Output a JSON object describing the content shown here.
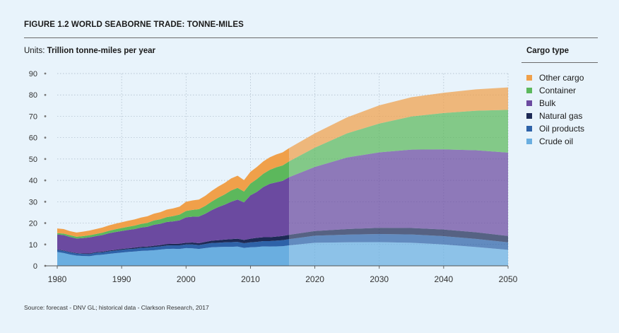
{
  "figure": {
    "title": "FIGURE 1.2 WORLD SEABORNE TRADE: TONNE-MILES",
    "units_prefix": "Units:",
    "units_value": "Trillion tonne-miles per year",
    "source": "Source: forecast - DNV GL; historical data - Clarkson Research, 2017"
  },
  "legend": {
    "title": "Cargo type",
    "items": [
      {
        "label": "Other cargo",
        "color": "#f0a04a"
      },
      {
        "label": "Container",
        "color": "#5cb85c"
      },
      {
        "label": "Bulk",
        "color": "#6b4aa0"
      },
      {
        "label": "Natural gas",
        "color": "#1d2a55"
      },
      {
        "label": "Oil products",
        "color": "#2e62a8"
      },
      {
        "label": "Crude oil",
        "color": "#6aaee0"
      }
    ]
  },
  "chart_data": {
    "type": "area",
    "stacked": true,
    "title": "FIGURE 1.2 WORLD SEABORNE TRADE: TONNE-MILES",
    "ylabel": "Trillion tonne-miles per year",
    "xlabel": "",
    "xlim": [
      1980,
      2050
    ],
    "ylim": [
      0,
      90
    ],
    "forecast_start": 2016,
    "x_ticks": [
      1980,
      1990,
      2000,
      2010,
      2020,
      2030,
      2040,
      2050
    ],
    "y_ticks": [
      0,
      10,
      20,
      30,
      40,
      50,
      60,
      70,
      80,
      90
    ],
    "x": [
      1980,
      1981,
      1982,
      1983,
      1984,
      1985,
      1986,
      1987,
      1988,
      1989,
      1990,
      1991,
      1992,
      1993,
      1994,
      1995,
      1996,
      1997,
      1998,
      1999,
      2000,
      2001,
      2002,
      2003,
      2004,
      2005,
      2006,
      2007,
      2008,
      2009,
      2010,
      2011,
      2012,
      2013,
      2014,
      2015,
      2016,
      2020,
      2025,
      2030,
      2035,
      2040,
      2045,
      2050
    ],
    "series": [
      {
        "name": "Crude oil",
        "color": "#6aaee0",
        "values": [
          6.5,
          6.0,
          5.3,
          4.8,
          4.6,
          4.5,
          5.0,
          5.2,
          5.6,
          5.9,
          6.2,
          6.5,
          6.7,
          7.0,
          7.1,
          7.3,
          7.6,
          7.9,
          8.0,
          7.9,
          8.3,
          8.2,
          7.9,
          8.3,
          8.7,
          8.8,
          8.9,
          8.9,
          9.0,
          8.4,
          8.7,
          8.8,
          9.1,
          9.0,
          9.1,
          9.2,
          9.6,
          10.8,
          11.0,
          11.1,
          10.8,
          10.0,
          8.8,
          7.5
        ]
      },
      {
        "name": "Oil products",
        "color": "#2e62a8",
        "values": [
          1.0,
          1.0,
          1.0,
          1.0,
          1.0,
          1.0,
          1.1,
          1.1,
          1.2,
          1.2,
          1.3,
          1.3,
          1.3,
          1.4,
          1.4,
          1.5,
          1.5,
          1.6,
          1.6,
          1.7,
          1.7,
          1.8,
          1.8,
          1.9,
          2.0,
          2.0,
          2.1,
          2.2,
          2.2,
          2.2,
          2.3,
          2.4,
          2.5,
          2.6,
          2.7,
          2.8,
          2.9,
          3.3,
          3.6,
          3.8,
          3.9,
          3.9,
          3.8,
          3.5
        ]
      },
      {
        "name": "Natural gas",
        "color": "#1d2a55",
        "values": [
          0.2,
          0.2,
          0.2,
          0.2,
          0.2,
          0.3,
          0.3,
          0.3,
          0.3,
          0.4,
          0.4,
          0.4,
          0.5,
          0.5,
          0.5,
          0.6,
          0.6,
          0.7,
          0.7,
          0.8,
          0.8,
          0.9,
          0.9,
          1.0,
          1.1,
          1.2,
          1.3,
          1.4,
          1.5,
          1.5,
          1.7,
          1.9,
          1.8,
          1.8,
          1.9,
          2.0,
          2.0,
          2.2,
          2.6,
          2.9,
          3.0,
          3.1,
          3.1,
          3.0
        ]
      },
      {
        "name": "Bulk",
        "color": "#6b4aa0",
        "values": [
          7.0,
          7.2,
          7.0,
          6.8,
          7.2,
          7.5,
          7.5,
          7.8,
          8.1,
          8.3,
          8.4,
          8.6,
          8.7,
          9.0,
          9.3,
          9.8,
          10.0,
          10.3,
          10.5,
          10.9,
          11.9,
          12.1,
          12.5,
          13.2,
          14.3,
          15.5,
          16.3,
          17.5,
          18.3,
          17.6,
          20.3,
          21.5,
          23.5,
          25.0,
          25.4,
          25.8,
          27.0,
          30.0,
          33.5,
          35.3,
          36.7,
          37.5,
          38.4,
          39.0
        ]
      },
      {
        "name": "Container",
        "color": "#5cb85c",
        "values": [
          0.6,
          0.7,
          0.8,
          0.8,
          0.9,
          1.0,
          1.0,
          1.1,
          1.2,
          1.3,
          1.4,
          1.5,
          1.6,
          1.7,
          1.8,
          2.0,
          2.1,
          2.3,
          2.5,
          2.7,
          3.0,
          3.2,
          3.4,
          3.7,
          4.0,
          4.4,
          4.8,
          5.3,
          5.5,
          5.1,
          5.5,
          6.0,
          6.2,
          6.5,
          7.0,
          7.2,
          7.4,
          9.0,
          11.3,
          13.5,
          15.5,
          17.0,
          18.5,
          20.0
        ]
      },
      {
        "name": "Other cargo",
        "color": "#f0a04a",
        "values": [
          2.2,
          2.1,
          1.9,
          2.0,
          2.1,
          2.2,
          2.3,
          2.4,
          2.5,
          2.6,
          2.7,
          2.8,
          2.9,
          3.0,
          3.1,
          3.2,
          3.3,
          3.5,
          3.6,
          3.7,
          4.3,
          4.4,
          4.5,
          4.7,
          5.0,
          5.2,
          5.4,
          5.6,
          5.7,
          5.3,
          5.5,
          5.7,
          5.8,
          5.9,
          6.0,
          6.1,
          6.2,
          6.7,
          7.5,
          8.5,
          9.0,
          9.5,
          10.0,
          10.5
        ]
      }
    ]
  }
}
